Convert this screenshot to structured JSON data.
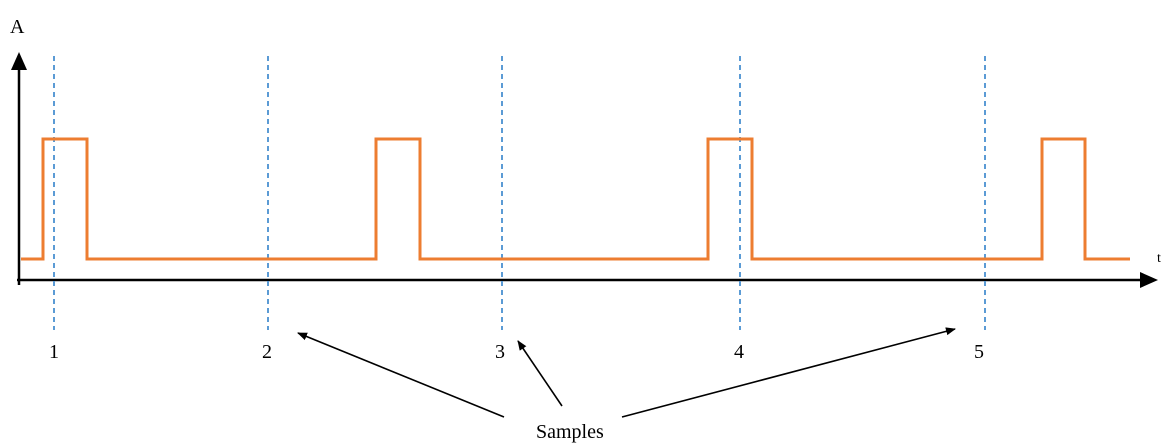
{
  "axis": {
    "y_label": "A",
    "x_label": "t"
  },
  "samples": {
    "labels": [
      "1",
      "2",
      "3",
      "4",
      "5"
    ],
    "caption": "Samples",
    "pointed_samples": [
      "2",
      "3",
      "5"
    ]
  },
  "colors": {
    "pulse": "#ed7d31",
    "sample_line": "#5b9bd5",
    "axis": "#000000"
  }
}
